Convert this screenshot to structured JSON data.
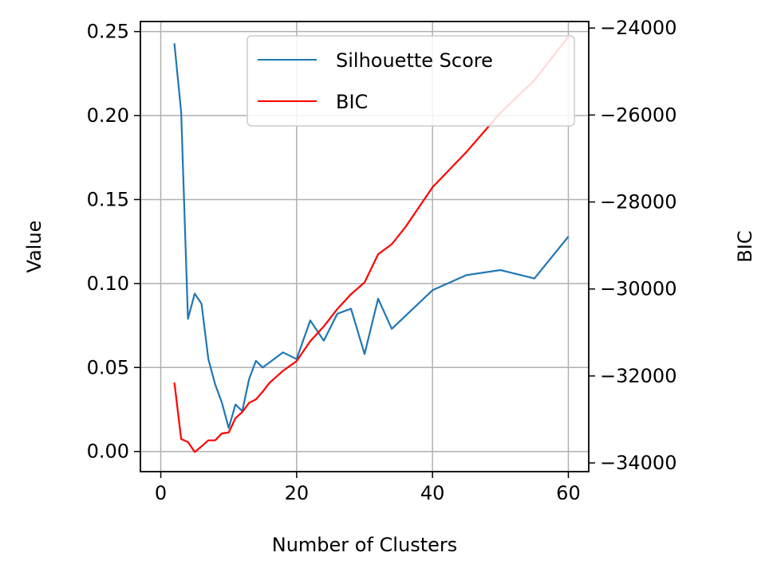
{
  "chart_data": {
    "type": "line",
    "xlabel": "Number of Clusters",
    "ylabel_left": "Value",
    "ylabel_right": "BIC",
    "xlim": [
      -3.0,
      63.0
    ],
    "ylim_left": [
      -0.012,
      0.256
    ],
    "ylim_right": [
      -34200,
      -23850
    ],
    "x_ticks": [
      0,
      20,
      40,
      60
    ],
    "x_tick_labels": [
      "0",
      "20",
      "40",
      "60"
    ],
    "y_left_ticks": [
      0.0,
      0.05,
      0.1,
      0.15,
      0.2,
      0.25
    ],
    "y_left_tick_labels": [
      "0.00",
      "0.05",
      "0.10",
      "0.15",
      "0.20",
      "0.25"
    ],
    "y_right_ticks": [
      -34000,
      -32000,
      -30000,
      -28000,
      -26000,
      -24000
    ],
    "y_right_tick_labels": [
      "−34000",
      "−32000",
      "−30000",
      "−28000",
      "−26000",
      "−24000"
    ],
    "grid": true,
    "legend_position": "top-right",
    "series": [
      {
        "name": "Silhouette Score",
        "axis": "left",
        "color": "#1f77b4",
        "x": [
          2,
          3,
          4,
          5,
          6,
          7,
          8,
          9,
          10,
          11,
          12,
          13,
          14,
          15,
          16,
          18,
          20,
          22,
          24,
          26,
          28,
          30,
          32,
          34,
          40,
          45,
          50,
          55,
          60
        ],
        "y": [
          0.243,
          0.202,
          0.079,
          0.094,
          0.088,
          0.055,
          0.04,
          0.029,
          0.014,
          0.028,
          0.024,
          0.043,
          0.054,
          0.05,
          0.053,
          0.059,
          0.055,
          0.078,
          0.066,
          0.082,
          0.085,
          0.058,
          0.091,
          0.073,
          0.096,
          0.105,
          0.108,
          0.103,
          0.128
        ]
      },
      {
        "name": "BIC",
        "axis": "right",
        "color": "#ff0000",
        "x": [
          2,
          3,
          4,
          5,
          6,
          7,
          8,
          9,
          10,
          11,
          12,
          13,
          14,
          15,
          16,
          18,
          20,
          22,
          24,
          26,
          28,
          30,
          32,
          34,
          36,
          40,
          45,
          50,
          55,
          60
        ],
        "y": [
          -32150,
          -33450,
          -33520,
          -33750,
          -33620,
          -33480,
          -33480,
          -33320,
          -33300,
          -32970,
          -32830,
          -32620,
          -32540,
          -32360,
          -32160,
          -31880,
          -31660,
          -31200,
          -30860,
          -30460,
          -30120,
          -29850,
          -29200,
          -28970,
          -28580,
          -27660,
          -26850,
          -25950,
          -25200,
          -24200
        ]
      }
    ]
  }
}
